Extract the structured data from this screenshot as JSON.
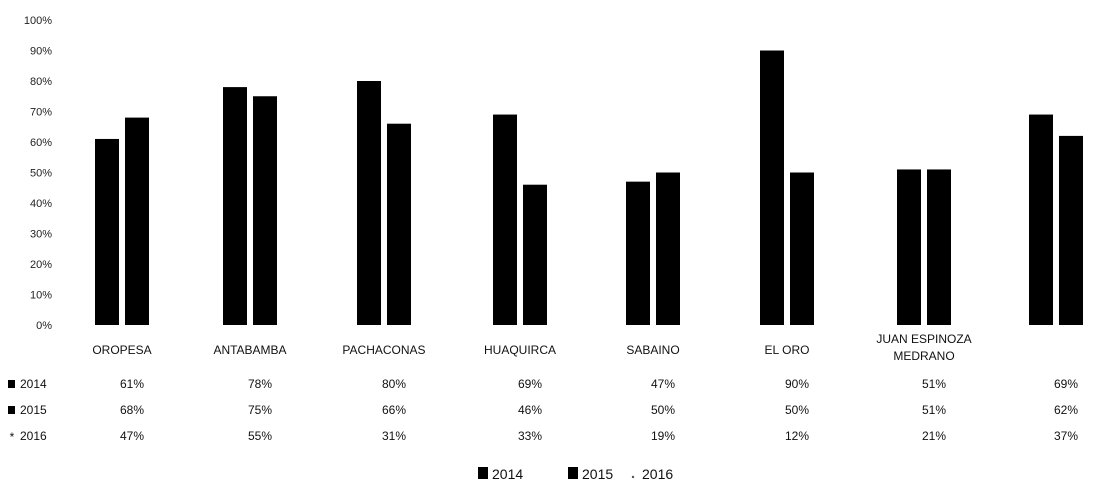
{
  "chart_data": {
    "type": "bar",
    "title": "",
    "xlabel": "",
    "ylabel": "",
    "ylim": [
      0,
      100
    ],
    "y_ticks": [
      "0%",
      "10%",
      "20%",
      "30%",
      "40%",
      "50%",
      "60%",
      "70%",
      "80%",
      "90%",
      "100%"
    ],
    "categories": [
      "OROPESA",
      "ANTABAMBA",
      "PACHACONAS",
      "HUAQUIRCA",
      "SABAINO",
      "EL ORO",
      "JUAN ESPINOZA MEDRANO",
      ""
    ],
    "category_lines": [
      [
        "OROPESA"
      ],
      [
        "ANTABAMBA"
      ],
      [
        "PACHACONAS"
      ],
      [
        "HUAQUIRCA"
      ],
      [
        "SABAINO"
      ],
      [
        "EL ORO"
      ],
      [
        "JUAN ESPINOZA",
        "MEDRANO"
      ],
      []
    ],
    "series": [
      {
        "name": "2014",
        "values": [
          61,
          78,
          80,
          69,
          47,
          90,
          51,
          69
        ],
        "color": "#000000"
      },
      {
        "name": "2015",
        "values": [
          68,
          75,
          66,
          46,
          50,
          50,
          51,
          62
        ],
        "color": "#000000"
      },
      {
        "name": "2016",
        "values": [
          47,
          55,
          31,
          33,
          19,
          12,
          21,
          37
        ],
        "color": "#ffffff"
      }
    ],
    "table_rows": [
      {
        "label": "2014",
        "cells": [
          "61%",
          "78%",
          "80%",
          "69%",
          "47%",
          "90%",
          "51%",
          "69%"
        ]
      },
      {
        "label": "2015",
        "cells": [
          "68%",
          "75%",
          "66%",
          "46%",
          "50%",
          "50%",
          "51%",
          "62%"
        ]
      },
      {
        "label": "2016",
        "cells": [
          "47%",
          "55%",
          "31%",
          "33%",
          "19%",
          "12%",
          "21%",
          "37%"
        ]
      }
    ],
    "legend": [
      "2014",
      "2015",
      "2016"
    ],
    "legend_position": "bottom",
    "grid": false
  }
}
